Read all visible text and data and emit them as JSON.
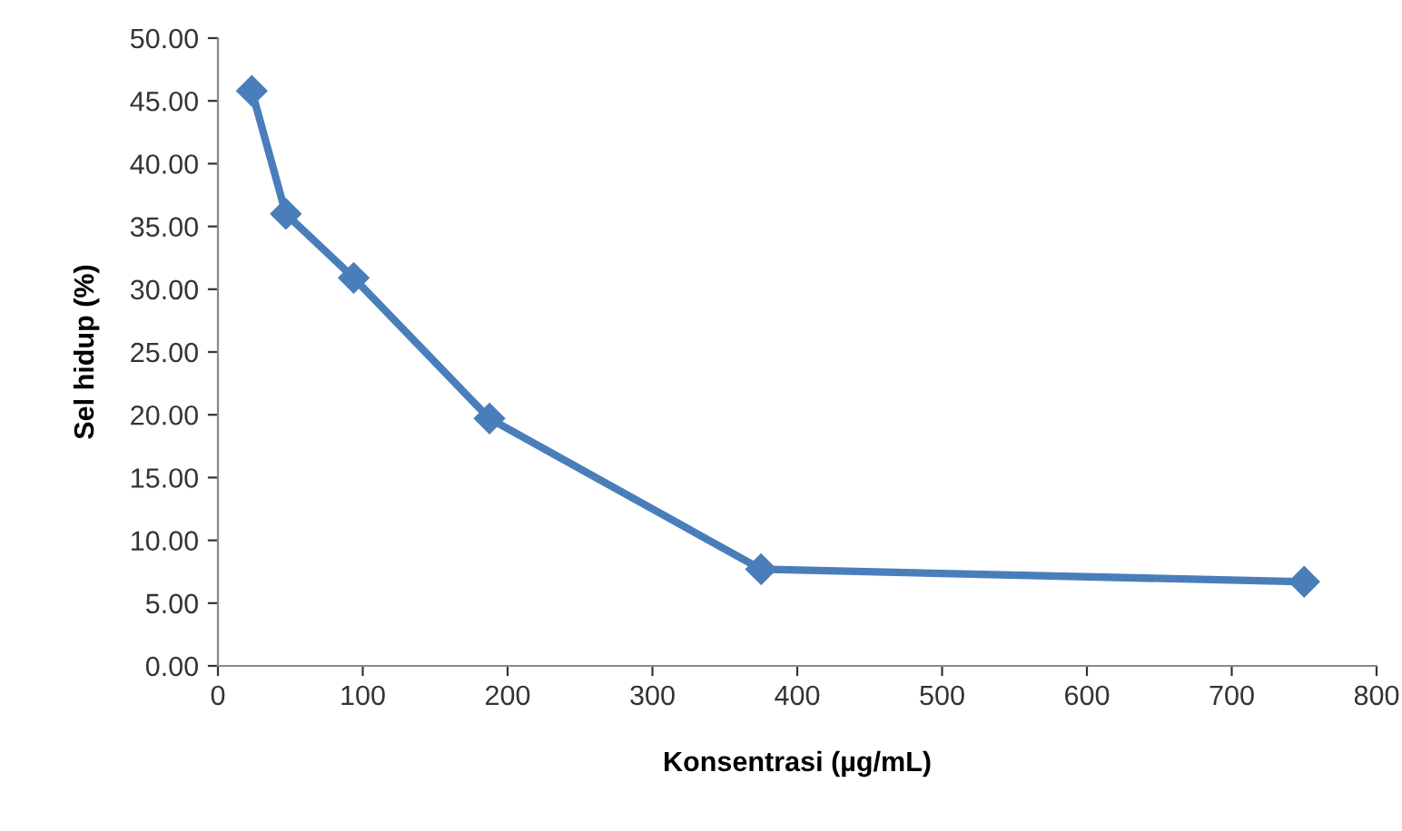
{
  "chart_data": {
    "type": "line",
    "xlabel": "Konsentrasi (µg/mL)",
    "ylabel": "Sel hidup (%)",
    "x": [
      23.4,
      46.9,
      93.75,
      187.5,
      375,
      750
    ],
    "series": [
      {
        "color": "#4a7ebb",
        "values": [
          45.8,
          36.0,
          30.9,
          19.7,
          7.7,
          6.7
        ]
      }
    ],
    "xlim": [
      0,
      800
    ],
    "xticks": [
      0,
      100,
      200,
      300,
      400,
      500,
      600,
      700,
      800
    ],
    "ylim": [
      0,
      50
    ],
    "yticks": [
      {
        "value": 0,
        "label": "0.00"
      },
      {
        "value": 5,
        "label": "5.00"
      },
      {
        "value": 10,
        "label": "10.00"
      },
      {
        "value": 15,
        "label": "15.00"
      },
      {
        "value": 20,
        "label": "20.00"
      },
      {
        "value": 25,
        "label": "25.00"
      },
      {
        "value": 30,
        "label": "30.00"
      },
      {
        "value": 35,
        "label": "35.00"
      },
      {
        "value": 40,
        "label": "40.00"
      },
      {
        "value": 45,
        "label": "45.00"
      },
      {
        "value": 50,
        "label": "50.00"
      }
    ],
    "grid": false,
    "marker": "diamond",
    "line_style": "solid"
  }
}
